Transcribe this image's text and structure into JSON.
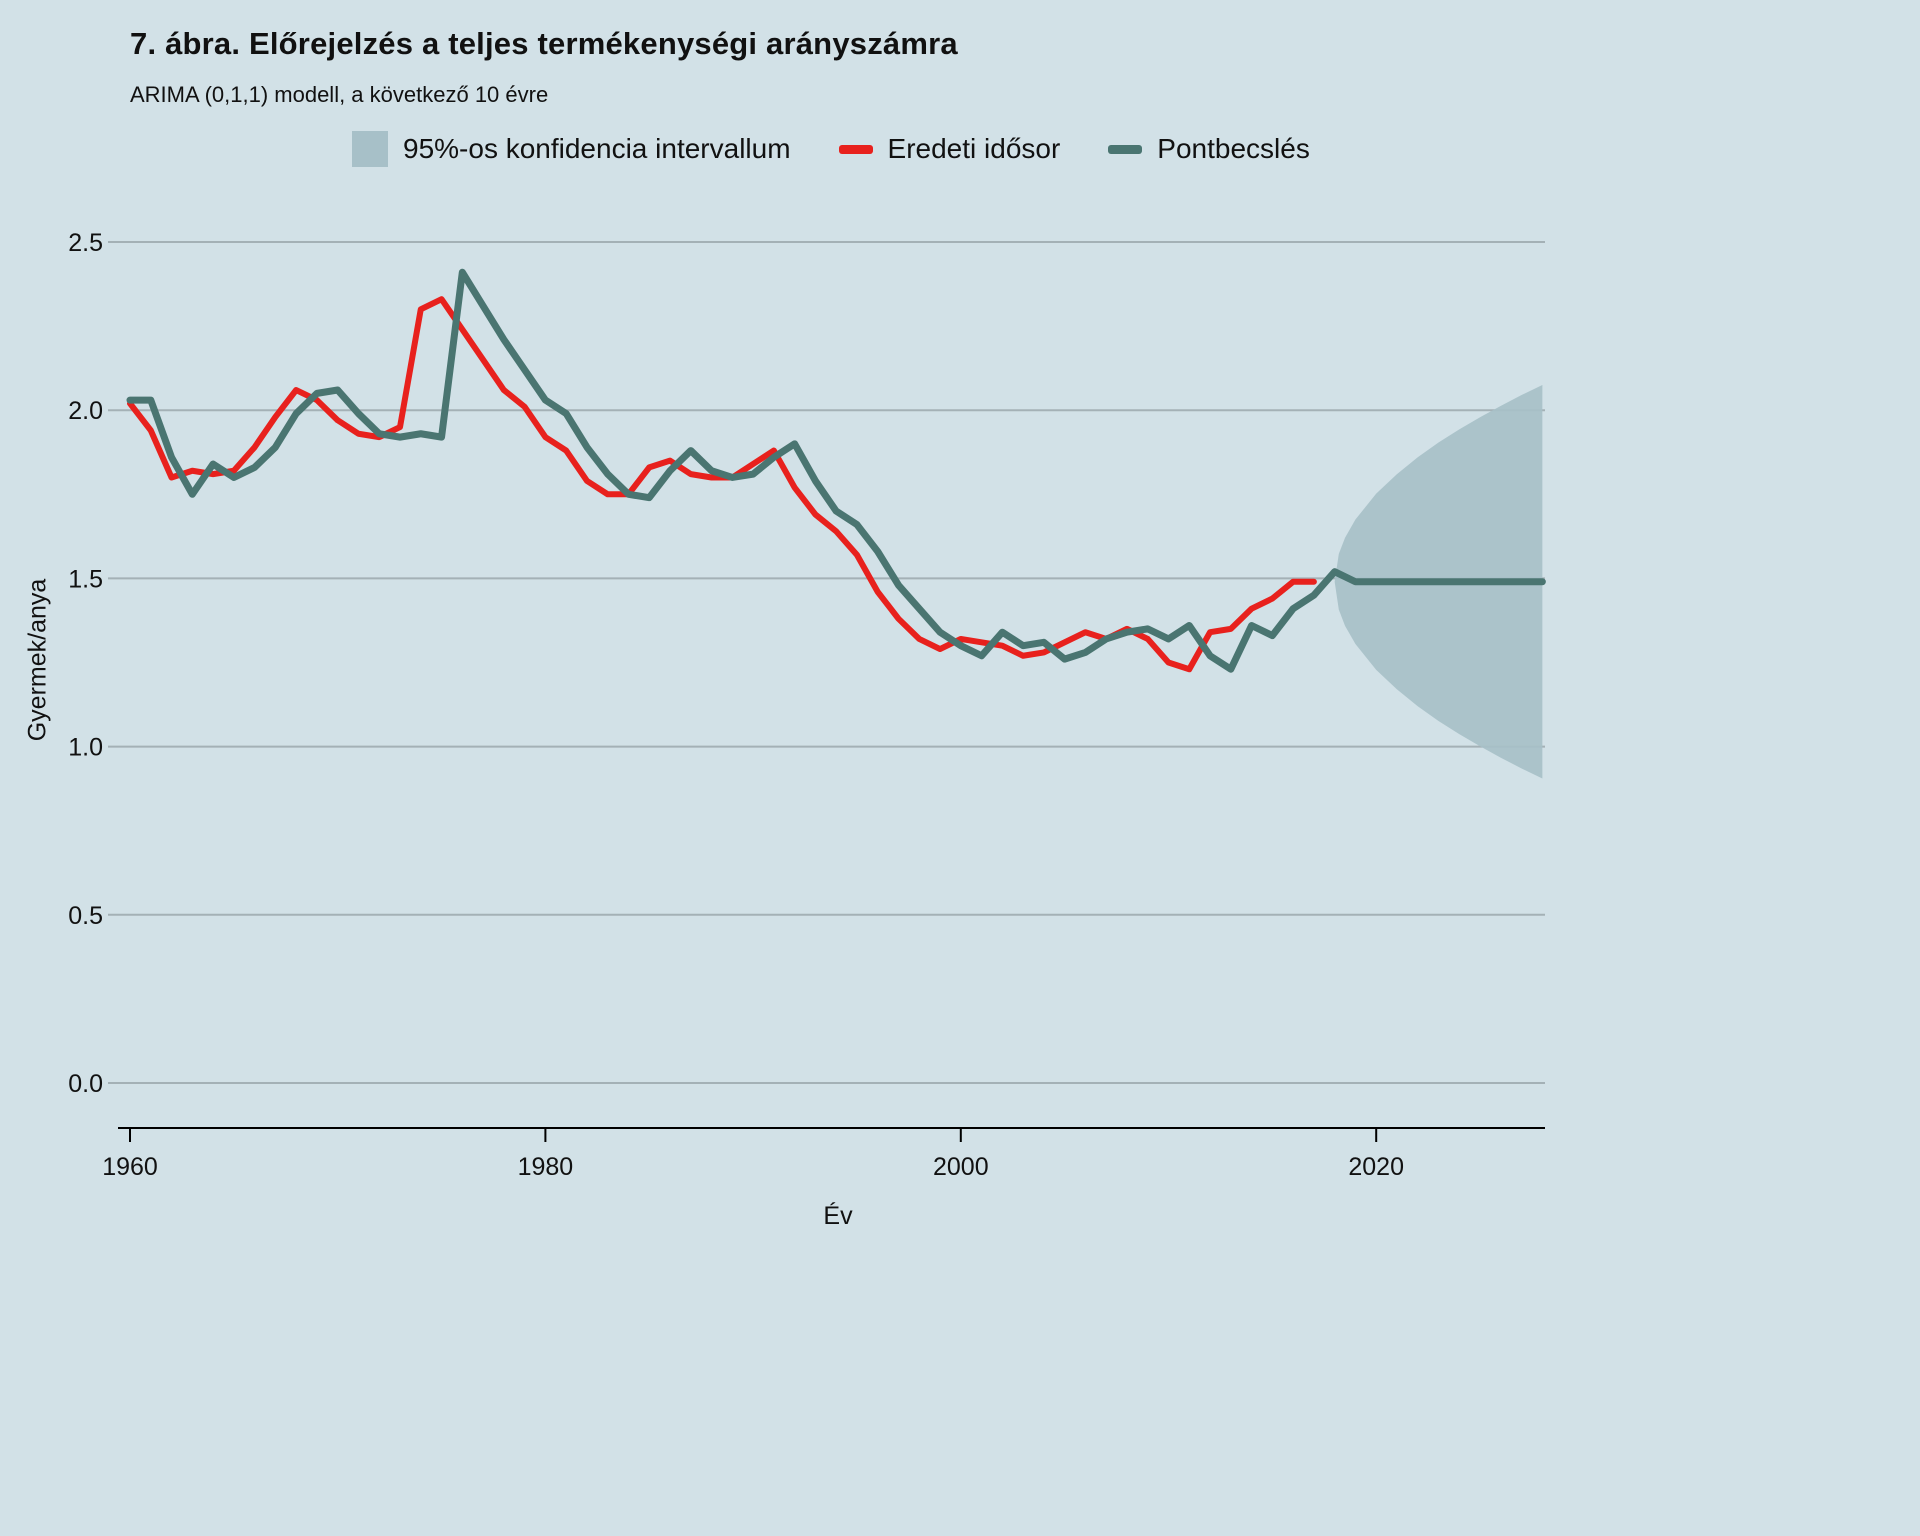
{
  "page": {
    "background": "#d2e1e7",
    "gridline_color": "#a4b1b6",
    "axis_color": "#000000"
  },
  "header": {
    "title": "7. ábra. Előrejelzés a teljes termékenységi arányszámra",
    "subtitle": "ARIMA (0,1,1) modell, a következő 10 évre"
  },
  "legend": {
    "items": [
      {
        "label": "95%-os konfidencia intervallum",
        "swatch": "area",
        "color": "#a7c0c8"
      },
      {
        "label": "Eredeti idősor",
        "swatch": "line",
        "color": "#e8211d"
      },
      {
        "label": "Pontbecslés",
        "swatch": "line",
        "color": "#4a7571"
      }
    ]
  },
  "chart_data": {
    "type": "line",
    "title": "7. ábra. Előrejelzés a teljes termékenységi arányszámra",
    "subtitle": "ARIMA (0,1,1) modell, a következő 10 évre",
    "xlabel": "Év",
    "ylabel": "Gyermek/anya",
    "xlim": [
      1959.5,
      2028.2
    ],
    "ylim": [
      0.0,
      2.5
    ],
    "x_ticks": [
      1960,
      1980,
      2000,
      2020
    ],
    "y_ticks": {
      "values": [
        0.0,
        0.5,
        1.0,
        1.5,
        2.0,
        2.5
      ],
      "labels": [
        "0.0",
        "0.5",
        "1.0",
        "1.5",
        "2.0",
        "2.5"
      ]
    },
    "grid": "horizontal",
    "legend_position": "top",
    "series": [
      {
        "name": "Eredeti idősor",
        "color": "#e8211d",
        "x_start": 1960,
        "values": [
          2.02,
          1.94,
          1.8,
          1.82,
          1.81,
          1.82,
          1.89,
          1.98,
          2.06,
          2.03,
          1.97,
          1.93,
          1.92,
          1.95,
          2.3,
          2.33,
          2.24,
          2.15,
          2.06,
          2.01,
          1.92,
          1.88,
          1.79,
          1.75,
          1.75,
          1.83,
          1.85,
          1.81,
          1.8,
          1.8,
          1.84,
          1.88,
          1.77,
          1.69,
          1.64,
          1.57,
          1.46,
          1.38,
          1.32,
          1.29,
          1.32,
          1.31,
          1.3,
          1.27,
          1.28,
          1.31,
          1.34,
          1.32,
          1.35,
          1.32,
          1.25,
          1.23,
          1.34,
          1.35,
          1.41,
          1.44,
          1.49,
          1.49
        ]
      },
      {
        "name": "Pontbecslés",
        "color": "#4a7571",
        "x_start": 1960,
        "values": [
          2.03,
          2.03,
          1.86,
          1.75,
          1.84,
          1.8,
          1.83,
          1.89,
          1.99,
          2.05,
          2.06,
          1.99,
          1.93,
          1.92,
          1.93,
          1.92,
          2.41,
          2.31,
          2.21,
          2.12,
          2.03,
          1.99,
          1.89,
          1.81,
          1.75,
          1.74,
          1.82,
          1.88,
          1.82,
          1.8,
          1.81,
          1.86,
          1.9,
          1.79,
          1.7,
          1.66,
          1.58,
          1.48,
          1.41,
          1.34,
          1.3,
          1.27,
          1.34,
          1.3,
          1.31,
          1.26,
          1.28,
          1.32,
          1.34,
          1.35,
          1.32,
          1.36,
          1.27,
          1.23,
          1.36,
          1.33,
          1.41,
          1.45,
          1.52,
          1.49,
          1.49,
          1.49,
          1.49,
          1.49,
          1.49,
          1.49,
          1.49,
          1.49,
          1.49
        ]
      }
    ],
    "confidence_interval": {
      "name": "95%-os konfidencia intervallum",
      "level": "95%",
      "color": "#a7c0c8",
      "forecast_mean": 1.49,
      "years": [
        2018,
        2018.2,
        2018.5,
        2019,
        2020,
        2021,
        2022,
        2023,
        2024,
        2025,
        2026,
        2027,
        2028
      ],
      "upper": [
        1.49,
        1.573,
        1.621,
        1.675,
        1.752,
        1.81,
        1.86,
        1.904,
        1.943,
        1.979,
        2.013,
        2.045,
        2.075
      ],
      "lower": [
        1.49,
        1.407,
        1.359,
        1.305,
        1.228,
        1.17,
        1.12,
        1.076,
        1.037,
        1.001,
        0.967,
        0.935,
        0.905
      ]
    }
  }
}
